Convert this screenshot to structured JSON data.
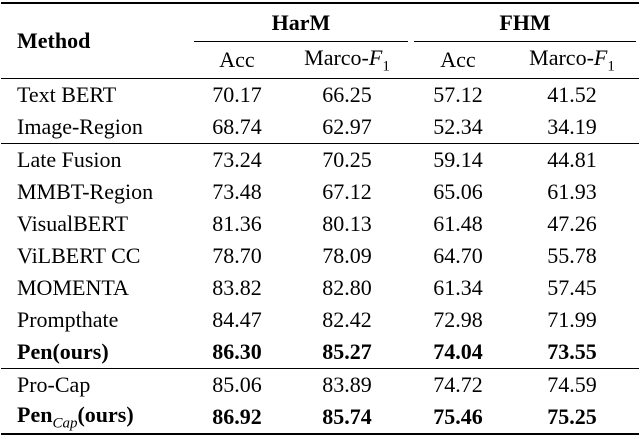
{
  "header": {
    "method": "Method",
    "groups": [
      "HarM",
      "FHM"
    ],
    "columns": [
      {
        "label": "Acc"
      },
      {
        "label": "Marco-",
        "var": "F",
        "sub": "1"
      },
      {
        "label": "Acc"
      },
      {
        "label": "Marco-",
        "var": "F",
        "sub": "1"
      }
    ]
  },
  "table": {
    "groups": [
      [
        {
          "method": "Text BERT",
          "values": [
            "70.17",
            "66.25",
            "57.12",
            "41.52"
          ]
        },
        {
          "method": "Image-Region",
          "values": [
            "68.74",
            "62.97",
            "52.34",
            "34.19"
          ]
        }
      ],
      [
        {
          "method": "Late Fusion",
          "values": [
            "73.24",
            "70.25",
            "59.14",
            "44.81"
          ]
        },
        {
          "method": "MMBT-Region",
          "values": [
            "73.48",
            "67.12",
            "65.06",
            "61.93"
          ]
        },
        {
          "method": "VisualBERT",
          "values": [
            "81.36",
            "80.13",
            "61.48",
            "47.26"
          ]
        },
        {
          "method": "ViLBERT CC",
          "values": [
            "78.70",
            "78.09",
            "64.70",
            "55.78"
          ]
        },
        {
          "method": "MOMENTA",
          "values": [
            "83.82",
            "82.80",
            "61.34",
            "57.45"
          ]
        },
        {
          "method": "Prompthate",
          "values": [
            "84.47",
            "82.42",
            "72.98",
            "71.99"
          ]
        },
        {
          "method": "Pen(ours)",
          "values": [
            "86.30",
            "85.27",
            "74.04",
            "73.55"
          ],
          "bold": true
        }
      ],
      [
        {
          "method": "Pro-Cap",
          "values": [
            "85.06",
            "83.89",
            "74.72",
            "74.59"
          ]
        },
        {
          "method": "Pen",
          "method_sub": "Cap",
          "method_suffix": "(ours)",
          "values": [
            "86.92",
            "85.74",
            "75.46",
            "75.25"
          ],
          "bold": true
        }
      ]
    ]
  }
}
